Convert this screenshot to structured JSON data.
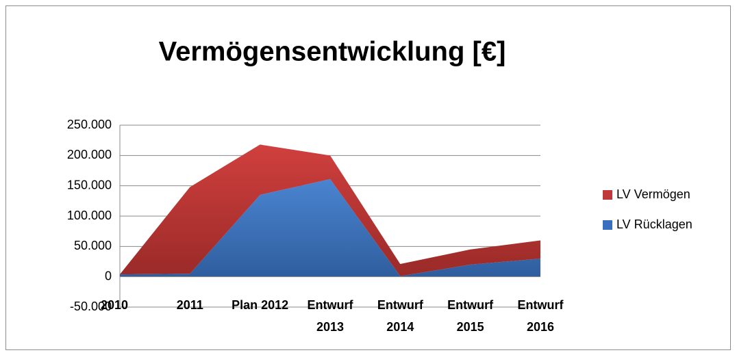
{
  "chart_data": {
    "type": "area",
    "stacked": true,
    "title": "Vermögensentwicklung [€]",
    "categories": [
      "2010",
      "2011",
      "Plan 2012",
      "Entwurf 2013",
      "Entwurf 2014",
      "Entwurf 2015",
      "Entwurf 2016"
    ],
    "series": [
      {
        "name": "LV Rücklagen",
        "color": "#3a6fbf",
        "values": [
          4000,
          5000,
          135000,
          161000,
          1000,
          20000,
          30000
        ]
      },
      {
        "name": "LV Vermögen",
        "color": "#c0393a",
        "values": [
          0,
          143000,
          83000,
          39000,
          20000,
          25000,
          30000
        ]
      }
    ],
    "ylim": [
      -50000,
      250000
    ],
    "yticks": [
      {
        "value": -50000,
        "label": "-50.000"
      },
      0,
      {
        "value": 50000,
        "label": "50.000"
      },
      {
        "value": 100000,
        "label": "100.000"
      },
      {
        "value": 150000,
        "label": "150.000"
      },
      {
        "value": 200000,
        "label": "200.000"
      },
      {
        "value": 250000,
        "label": "250.000"
      }
    ],
    "grid": true,
    "legend": "right"
  }
}
